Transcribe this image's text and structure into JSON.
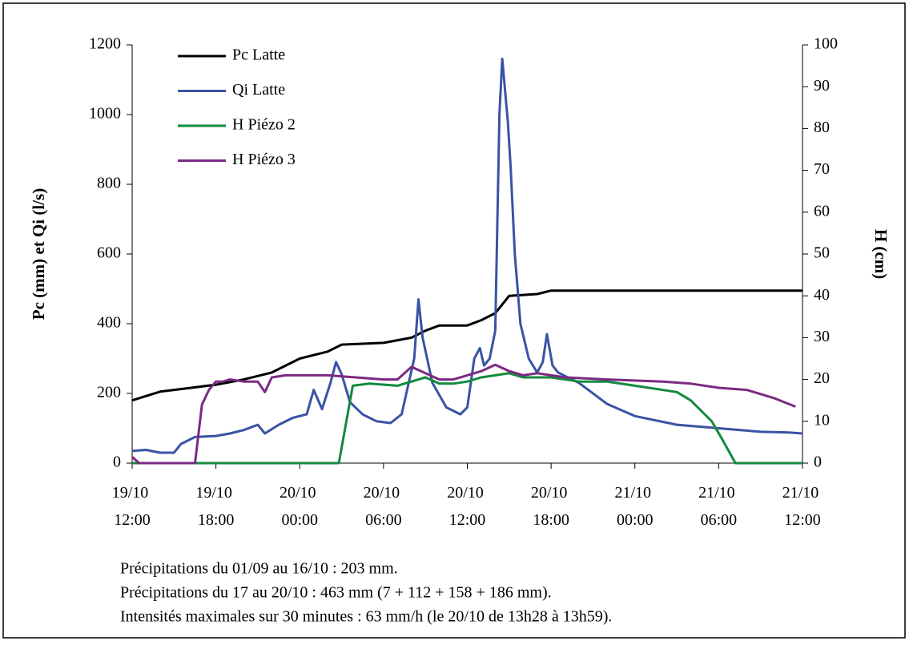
{
  "chart_data": {
    "type": "line",
    "y_label": "Pc (mm) et Qi (l/s)",
    "y2_label": "H (cm)",
    "xlim": [
      "19/10 12:00",
      "21/10 12:00"
    ],
    "xticks": [
      "19/10 12:00",
      "19/10 18:00",
      "20/10 00:00",
      "20/10 06:00",
      "20/10 12:00",
      "20/10 18:00",
      "21/10 00:00",
      "21/10 06:00",
      "21/10 12:00"
    ],
    "ylim": [
      0,
      1200
    ],
    "yticks": [
      0,
      200,
      400,
      600,
      800,
      1000,
      1200
    ],
    "y2lim": [
      0,
      100
    ],
    "y2ticks": [
      0,
      10,
      20,
      30,
      40,
      50,
      60,
      70,
      80,
      90,
      100
    ],
    "grid": false,
    "legend": "upper left",
    "series": [
      {
        "name": "Pc  Latte",
        "color": "#000000",
        "x": [
          "19/10 12:00",
          "19/10 14:00",
          "19/10 16:00",
          "19/10 18:00",
          "19/10 20:00",
          "19/10 22:00",
          "20/10 00:00",
          "20/10 02:00",
          "20/10 03:00",
          "20/10 06:00",
          "20/10 08:00",
          "20/10 09:00",
          "20/10 10:00",
          "20/10 12:00",
          "20/10 13:00",
          "20/10 14:00",
          "20/10 15:00",
          "20/10 17:00",
          "20/10 18:00",
          "21/10 12:00"
        ],
        "values": [
          180,
          205,
          215,
          225,
          240,
          260,
          300,
          320,
          340,
          345,
          360,
          380,
          395,
          395,
          410,
          430,
          480,
          485,
          495,
          495
        ]
      },
      {
        "name": "Qi Latte",
        "color": "#3953a4",
        "x": [
          "19/10 12:00",
          "19/10 13:00",
          "19/10 14:00",
          "19/10 15:00",
          "19/10 15:30",
          "19/10 16:30",
          "19/10 18:00",
          "19/10 19:00",
          "19/10 20:00",
          "19/10 21:00",
          "19/10 21:30",
          "19/10 22:30",
          "19/10 23:30",
          "20/10 00:30",
          "20/10 01:00",
          "20/10 01:36",
          "20/10 02:12",
          "20/10 02:36",
          "20/10 03:00",
          "20/10 03:36",
          "20/10 04:30",
          "20/10 05:30",
          "20/10 06:30",
          "20/10 07:18",
          "20/10 07:48",
          "20/10 08:12",
          "20/10 08:30",
          "20/10 08:48",
          "20/10 09:30",
          "20/10 10:30",
          "20/10 11:30",
          "20/10 12:00",
          "20/10 12:30",
          "20/10 12:54",
          "20/10 13:12",
          "20/10 13:36",
          "20/10 14:00",
          "20/10 14:18",
          "20/10 14:30",
          "20/10 14:54",
          "20/10 15:06",
          "20/10 15:24",
          "20/10 15:48",
          "20/10 16:24",
          "20/10 17:00",
          "20/10 17:24",
          "20/10 17:42",
          "20/10 18:06",
          "20/10 18:30",
          "20/10 19:00",
          "20/10 20:00",
          "20/10 22:00",
          "21/10 00:00",
          "21/10 03:00",
          "21/10 06:00",
          "21/10 09:00",
          "21/10 11:00",
          "21/10 12:00"
        ],
        "values": [
          35,
          38,
          30,
          30,
          55,
          75,
          78,
          85,
          95,
          110,
          85,
          110,
          130,
          140,
          210,
          155,
          230,
          290,
          255,
          175,
          140,
          120,
          115,
          140,
          230,
          300,
          470,
          360,
          230,
          160,
          140,
          160,
          300,
          330,
          280,
          300,
          380,
          1000,
          1160,
          980,
          850,
          600,
          400,
          300,
          260,
          290,
          370,
          280,
          260,
          250,
          230,
          170,
          135,
          110,
          100,
          90,
          88,
          85
        ]
      },
      {
        "name": "H Piézo 2",
        "color": "#138a3e",
        "axis": "y2",
        "x": [
          "19/10 12:00",
          "20/10 02:48",
          "20/10 03:48",
          "20/10 05:00",
          "20/10 07:00",
          "20/10 09:00",
          "20/10 10:00",
          "20/10 11:00",
          "20/10 12:00",
          "20/10 13:00",
          "20/10 15:00",
          "20/10 16:00",
          "20/10 18:00",
          "20/10 20:00",
          "20/10 22:00",
          "21/10 00:00",
          "21/10 03:00",
          "21/10 04:00",
          "21/10 05:30",
          "21/10 06:12",
          "21/10 07:12",
          "21/10 12:00"
        ],
        "values": [
          0,
          0,
          18.5,
          19,
          18.5,
          20.5,
          19,
          19,
          19.5,
          20.5,
          21.5,
          20.5,
          20.5,
          19.5,
          19.5,
          18.5,
          17,
          15,
          10,
          6,
          0,
          0
        ]
      },
      {
        "name": "H Piézo 3",
        "color": "#7b2a82",
        "axis": "y2",
        "x": [
          "19/10 12:00",
          "19/10 12:30",
          "19/10 16:30",
          "19/10 17:00",
          "19/10 17:30",
          "19/10 18:00",
          "19/10 18:30",
          "19/10 19:00",
          "19/10 20:00",
          "19/10 21:00",
          "19/10 21:30",
          "19/10 22:00",
          "19/10 23:00",
          "20/10 00:00",
          "20/10 02:00",
          "20/10 04:00",
          "20/10 06:00",
          "20/10 07:00",
          "20/10 08:00",
          "20/10 09:00",
          "20/10 10:00",
          "20/10 11:00",
          "20/10 12:00",
          "20/10 13:00",
          "20/10 14:00",
          "20/10 15:00",
          "20/10 16:00",
          "20/10 17:00",
          "20/10 18:00",
          "20/10 19:00",
          "20/10 22:00",
          "21/10 02:00",
          "21/10 04:00",
          "21/10 06:00",
          "21/10 08:00",
          "21/10 10:00",
          "21/10 11:30"
        ],
        "values": [
          1.5,
          0,
          0,
          14,
          17.5,
          19.5,
          19.5,
          20,
          19.5,
          19.5,
          17,
          20.5,
          21,
          21,
          21,
          20.5,
          20,
          20,
          23,
          21.5,
          20,
          20,
          21,
          22,
          23.5,
          22,
          21,
          21.5,
          21,
          20.5,
          20,
          19.5,
          19,
          18,
          17.5,
          15.5,
          13.5
        ]
      }
    ],
    "notes": [
      "Précipitations du 01/09 au 16/10 : 203 mm.",
      "Précipitations du 17 au 20/10 : 463 mm (7 + 112 + 158 + 186 mm).",
      "Intensités maximales sur 30 minutes : 63 mm/h (le 20/10 de 13h28 à 13h59)."
    ]
  }
}
